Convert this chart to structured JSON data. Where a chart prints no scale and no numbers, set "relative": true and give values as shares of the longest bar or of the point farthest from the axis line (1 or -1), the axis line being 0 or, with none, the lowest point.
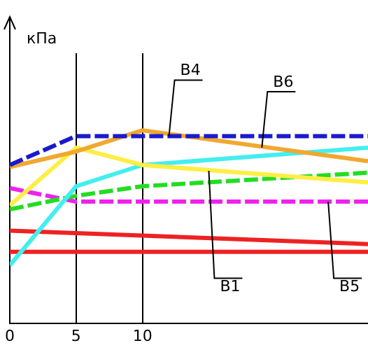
{
  "chart_data": {
    "type": "line",
    "relative": true,
    "x": [
      0,
      5,
      10,
      27
    ],
    "xlim": [
      0,
      27
    ],
    "xticks": [
      0,
      5,
      10
    ],
    "grid": "x",
    "legend": false,
    "marker": "none",
    "series": [
      {
        "color": "#1a1acc",
        "values": [
          0.82,
          0.97,
          0.97,
          0.97
        ],
        "line_style": "dashed"
      },
      {
        "color": "#f0a830",
        "values": [
          0.81,
          0.89,
          1,
          0.84
        ]
      },
      {
        "color": "#ffee44",
        "values": [
          0.61,
          0.91,
          0.82,
          0.73
        ]
      },
      {
        "color": "#44eeee",
        "values": [
          0.3,
          0.71,
          0.82,
          0.91
        ]
      },
      {
        "color": "#22dd22",
        "values": [
          0.59,
          0.66,
          0.71,
          0.78
        ],
        "line_style": "dashed"
      },
      {
        "color": "#ee22ee",
        "values": [
          0.7,
          0.63,
          0.63,
          0.63
        ],
        "line_style": "dashed"
      },
      {
        "color": "#ee2222",
        "values": [
          0.48,
          null,
          null,
          0.41
        ]
      },
      {
        "color": "#ee2222",
        "values": [
          0.37,
          0.37,
          0.37,
          0.37
        ]
      }
    ],
    "annotations": [
      "кПа",
      {
        "text": "B4",
        "x": 12,
        "y": 0.97
      },
      {
        "text": "B6",
        "x": 19,
        "y": 0.91
      },
      {
        "text": "B1",
        "x": 15,
        "y": 0.79
      },
      {
        "text": "B5",
        "x": 24,
        "y": 0.63
      }
    ]
  }
}
